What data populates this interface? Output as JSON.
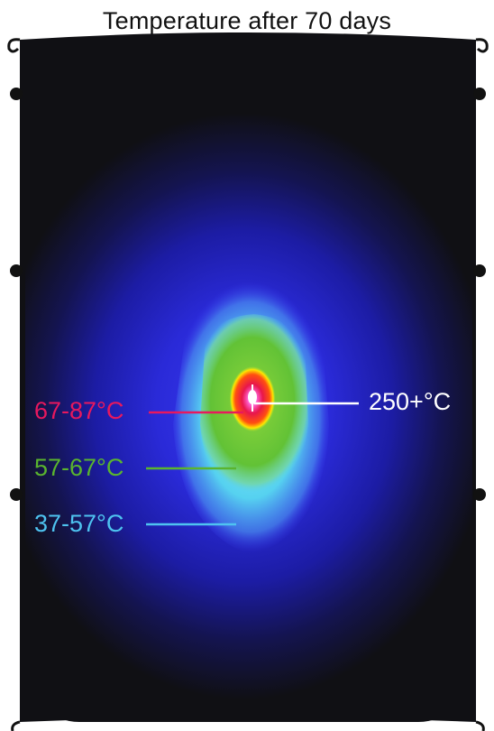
{
  "title": "Temperature after 70 days",
  "zones": {
    "core": {
      "label": "250+°C",
      "color": "#ffffff"
    },
    "red": {
      "label": "67-87°C",
      "color": "#e8185e"
    },
    "green": {
      "label": "57-67°C",
      "color": "#5ab52e"
    },
    "cyan": {
      "label": "37-57°C",
      "color": "#4ec3f0"
    }
  },
  "colors": {
    "background": "#101014",
    "blue_field": "#2020c8",
    "cyan_zone": "#56d2f0",
    "green_zone": "#62c236",
    "yellow_ring": "#ffe600",
    "red_zone": "#e8164c",
    "magenta_core": "#ff40c0"
  }
}
